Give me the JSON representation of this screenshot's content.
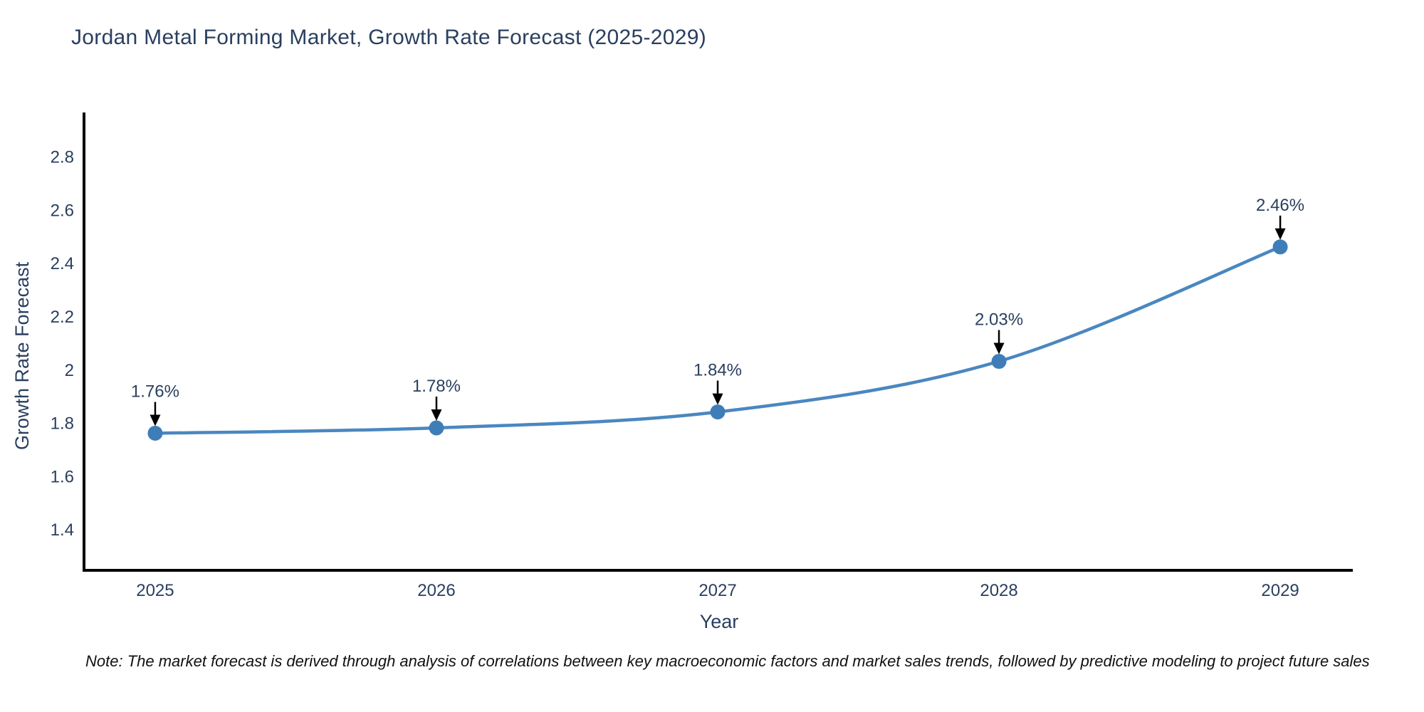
{
  "page": {
    "background": "#ffffff"
  },
  "chart_data": {
    "type": "line",
    "title": "Jordan Metal Forming Market, Growth Rate Forecast (2025-2029)",
    "xlabel": "Year",
    "ylabel": "Growth Rate Forecast",
    "x": [
      2025,
      2026,
      2027,
      2028,
      2029
    ],
    "series": [
      {
        "name": "Growth Rate Forecast",
        "values": [
          1.76,
          1.78,
          1.84,
          2.03,
          2.46
        ]
      }
    ],
    "point_labels": [
      "1.76%",
      "1.78%",
      "1.84%",
      "2.03%",
      "2.46%"
    ],
    "x_tick_labels": [
      "2025",
      "2026",
      "2027",
      "2028",
      "2029"
    ],
    "y_ticks": [
      1.4,
      1.6,
      1.8,
      2,
      2.2,
      2.4,
      2.6,
      2.8
    ],
    "y_tick_labels": [
      "1.4",
      "1.6",
      "1.8",
      "2",
      "2.2",
      "2.4",
      "2.6",
      "2.8"
    ],
    "xlim": [
      2024.747,
      2029.258
    ],
    "ylim": [
      1.245,
      2.965
    ],
    "grid": false,
    "legend_position": "none",
    "line_shape": "spline",
    "colors": {
      "line": "#4a87c0",
      "marker": "#3f7db8",
      "axis_line": "#000000",
      "tick_text": "#2a3f5f",
      "annotation_text": "#2a3f5f",
      "annotation_arrow": "#000000"
    }
  },
  "note": "Note: The market forecast is derived through analysis of correlations between key macroeconomic factors and market sales trends, followed by predictive modeling to project future sales"
}
